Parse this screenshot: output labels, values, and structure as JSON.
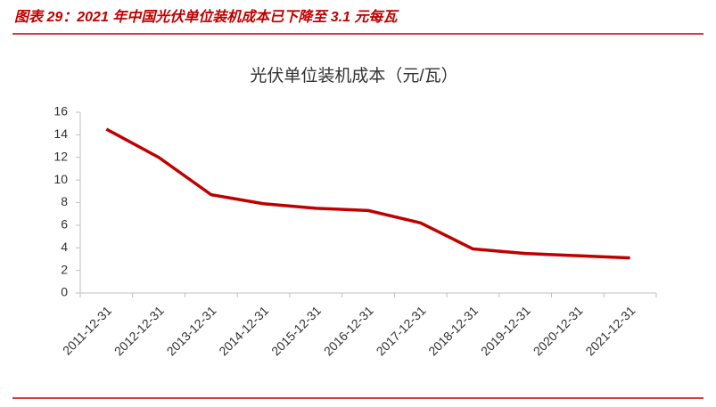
{
  "header": {
    "title": "图表 29：2021 年中国光伏单位装机成本已下降至 3.1 元每瓦"
  },
  "chart_data": {
    "type": "line",
    "title": "光伏单位装机成本（元/瓦）",
    "categories": [
      "2011-12-31",
      "2012-12-31",
      "2013-12-31",
      "2014-12-31",
      "2015-12-31",
      "2016-12-31",
      "2017-12-31",
      "2018-12-31",
      "2019-12-31",
      "2020-12-31",
      "2021-12-31"
    ],
    "values": [
      14.5,
      12.0,
      8.7,
      7.9,
      7.5,
      7.3,
      6.2,
      3.9,
      3.5,
      3.3,
      3.1
    ],
    "color": "#c00000",
    "ylim": [
      0,
      16
    ],
    "yticks": [
      0,
      2,
      4,
      6,
      8,
      10,
      12,
      14,
      16
    ],
    "grid": false
  }
}
